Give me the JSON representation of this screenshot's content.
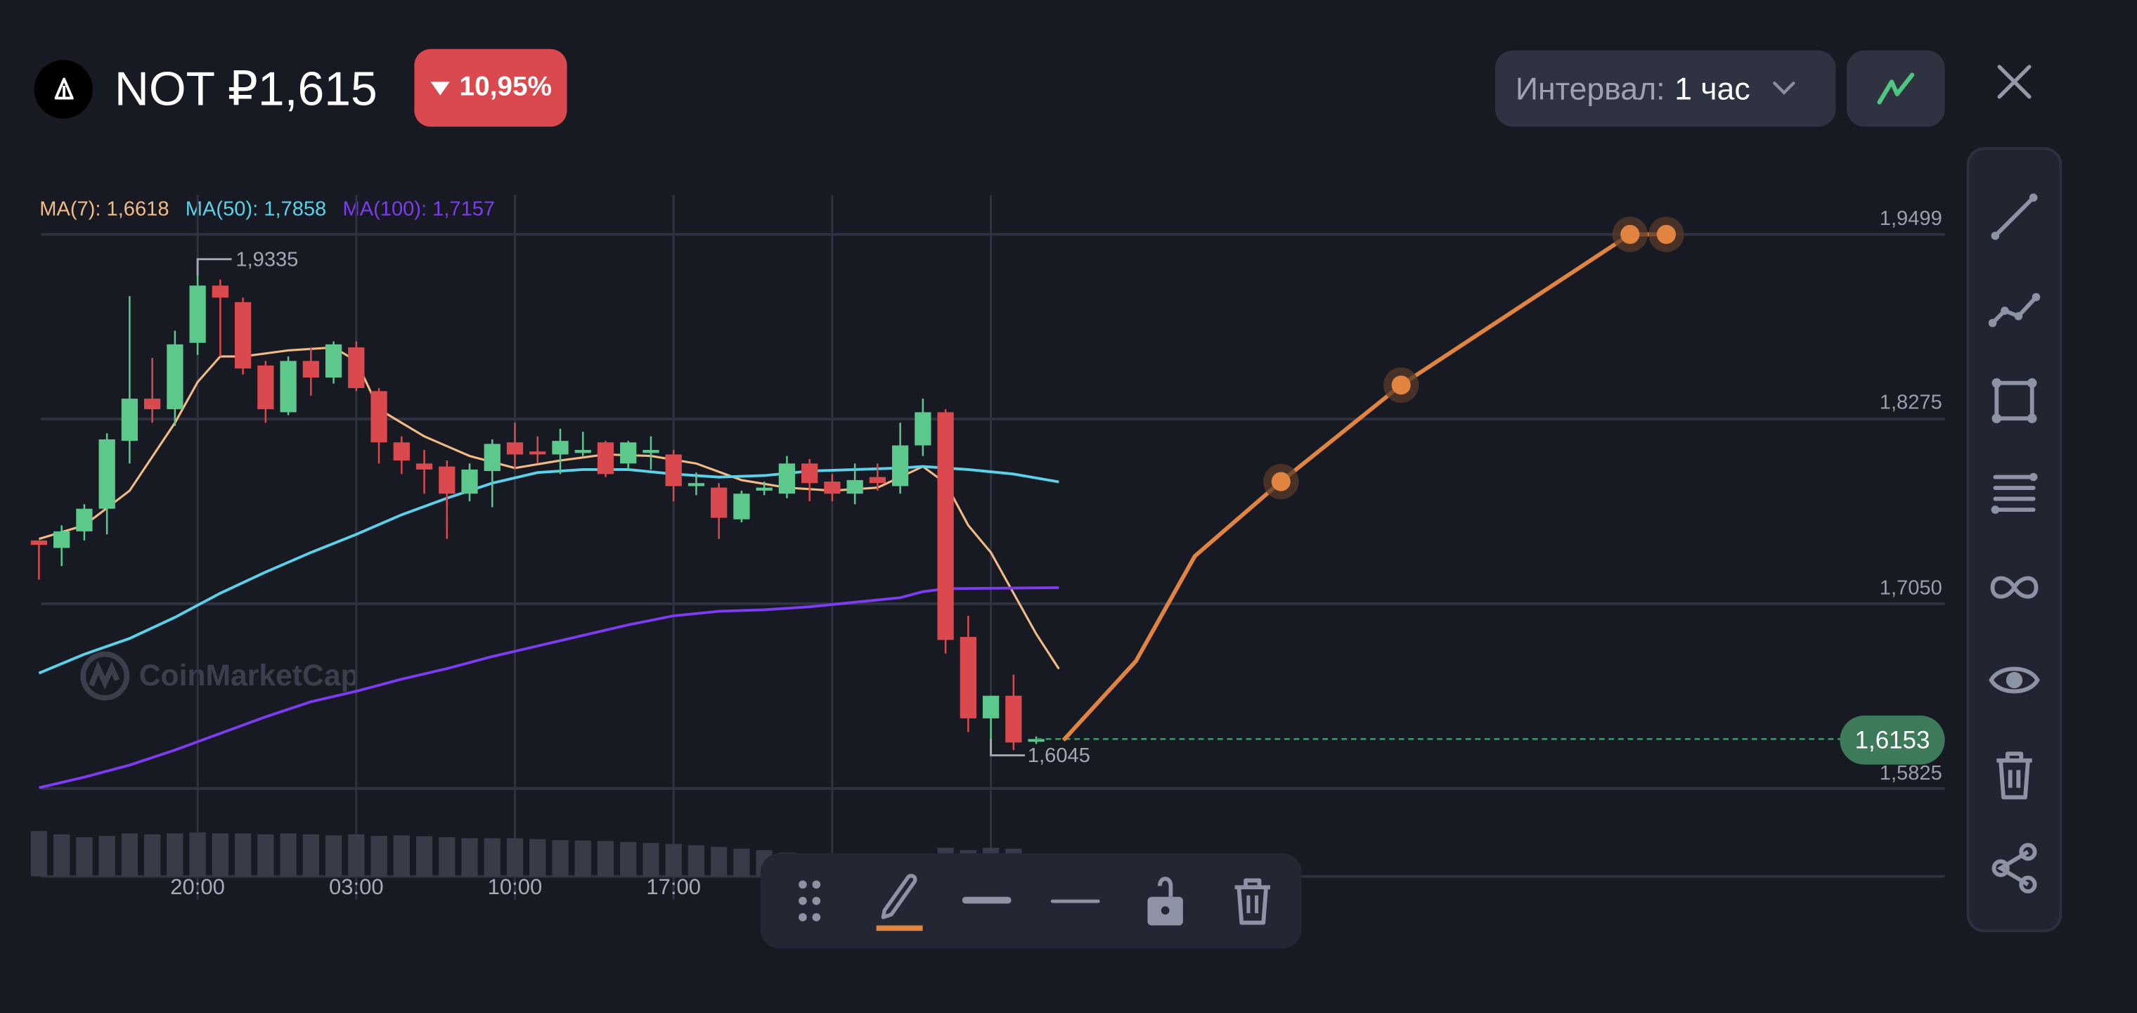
{
  "header": {
    "symbol": "NOT",
    "price": "₽1,615",
    "change": "10,95%",
    "change_direction": "down",
    "interval_label": "Интервал:",
    "interval_value": "1 час"
  },
  "colors": {
    "up": "#5cc88c",
    "down": "#d9494d",
    "ma7": "#f2bb86",
    "ma50": "#5bd2ea",
    "ma100": "#7d3cf0",
    "drawing": "#e0843f",
    "current_price": "#3d7a5a"
  },
  "legend": {
    "ma7": "MA(7): 1,6618",
    "ma50": "MA(50): 1,7858",
    "ma100": "MA(100): 1,7157"
  },
  "watermark": "CoinMarketCap",
  "chart_data": {
    "type": "candlestick",
    "y_ticks": [
      "1,9499",
      "1,8275",
      "1,7050",
      "1,5825"
    ],
    "y_tick_values": [
      1.9499,
      1.8275,
      1.705,
      1.5825
    ],
    "x_ticks": [
      {
        "bar": 7,
        "label": "20:00"
      },
      {
        "bar": 14,
        "label": "03:00"
      },
      {
        "bar": 21,
        "label": "10:00"
      },
      {
        "bar": 28,
        "label": "17:00"
      }
    ],
    "grid": true,
    "high_label": {
      "bar": 7,
      "value": 1.9335,
      "text": "1,9335"
    },
    "low_label": {
      "bar": 42,
      "value": 1.6045,
      "text": "1,6045"
    },
    "current_price": {
      "value": 1.6153,
      "text": "1,6153"
    },
    "candles": [
      [
        1.747,
        1.747,
        1.721,
        1.744
      ],
      [
        1.742,
        1.757,
        1.73,
        1.753
      ],
      [
        1.753,
        1.771,
        1.747,
        1.768
      ],
      [
        1.768,
        1.818,
        1.751,
        1.814
      ],
      [
        1.813,
        1.909,
        1.798,
        1.841
      ],
      [
        1.841,
        1.868,
        1.825,
        1.834
      ],
      [
        1.834,
        1.886,
        1.823,
        1.877
      ],
      [
        1.878,
        1.9335,
        1.87,
        1.916
      ],
      [
        1.916,
        1.92,
        1.869,
        1.908
      ],
      [
        1.905,
        1.908,
        1.857,
        1.861
      ],
      [
        1.863,
        1.866,
        1.825,
        1.834
      ],
      [
        1.832,
        1.869,
        1.83,
        1.866
      ],
      [
        1.866,
        1.875,
        1.843,
        1.855
      ],
      [
        1.855,
        1.879,
        1.851,
        1.877
      ],
      [
        1.875,
        1.879,
        1.846,
        1.848
      ],
      [
        1.846,
        1.848,
        1.798,
        1.812
      ],
      [
        1.812,
        1.816,
        1.791,
        1.8
      ],
      [
        1.798,
        1.807,
        1.778,
        1.794
      ],
      [
        1.796,
        1.8,
        1.748,
        1.778
      ],
      [
        1.778,
        1.798,
        1.773,
        1.794
      ],
      [
        1.793,
        1.814,
        1.769,
        1.811
      ],
      [
        1.812,
        1.825,
        1.794,
        1.804
      ],
      [
        1.806,
        1.816,
        1.798,
        1.804
      ],
      [
        1.804,
        1.821,
        1.791,
        1.813
      ],
      [
        1.805,
        1.819,
        1.803,
        1.807
      ],
      [
        1.812,
        1.813,
        1.789,
        1.791
      ],
      [
        1.798,
        1.813,
        1.794,
        1.812
      ],
      [
        1.805,
        1.816,
        1.794,
        1.807
      ],
      [
        1.804,
        1.807,
        1.773,
        1.783
      ],
      [
        1.783,
        1.792,
        1.777,
        1.785
      ],
      [
        1.782,
        1.785,
        1.748,
        1.762
      ],
      [
        1.761,
        1.78,
        1.759,
        1.778
      ],
      [
        1.78,
        1.786,
        1.777,
        1.782
      ],
      [
        1.778,
        1.803,
        1.775,
        1.798
      ],
      [
        1.798,
        1.801,
        1.773,
        1.785
      ],
      [
        1.786,
        1.791,
        1.773,
        1.778
      ],
      [
        1.778,
        1.798,
        1.771,
        1.787
      ],
      [
        1.789,
        1.798,
        1.78,
        1.785
      ],
      [
        1.783,
        1.825,
        1.778,
        1.81
      ],
      [
        1.81,
        1.841,
        1.803,
        1.832
      ],
      [
        1.832,
        1.834,
        1.672,
        1.681
      ],
      [
        1.683,
        1.697,
        1.62,
        1.629
      ],
      [
        1.629,
        1.644,
        1.6045,
        1.644
      ],
      [
        1.644,
        1.658,
        1.608,
        1.613
      ],
      [
        1.615,
        1.617,
        1.612,
        1.6153
      ]
    ],
    "volume_relative": [
      0.95,
      0.88,
      0.82,
      0.85,
      0.9,
      0.88,
      0.9,
      0.92,
      0.9,
      0.9,
      0.88,
      0.9,
      0.88,
      0.86,
      0.88,
      0.85,
      0.86,
      0.84,
      0.82,
      0.8,
      0.8,
      0.8,
      0.78,
      0.76,
      0.75,
      0.74,
      0.72,
      0.7,
      0.68,
      0.65,
      0.62,
      0.58,
      0.55,
      0.5,
      0.45,
      0.4,
      0.35,
      0.3,
      0.28,
      0.32,
      0.6,
      0.55,
      0.6,
      0.58,
      0.2
    ],
    "series": [
      {
        "name": "MA(7)",
        "points": [
          [
            0,
            1.748
          ],
          [
            2,
            1.757
          ],
          [
            4,
            1.78
          ],
          [
            6,
            1.825
          ],
          [
            7,
            1.852
          ],
          [
            8,
            1.869
          ],
          [
            9,
            1.869
          ],
          [
            11,
            1.873
          ],
          [
            13,
            1.875
          ],
          [
            14,
            1.866
          ],
          [
            15,
            1.834
          ],
          [
            17,
            1.816
          ],
          [
            19,
            1.803
          ],
          [
            21,
            1.795
          ],
          [
            23,
            1.8
          ],
          [
            25,
            1.804
          ],
          [
            27,
            1.803
          ],
          [
            29,
            1.798
          ],
          [
            31,
            1.787
          ],
          [
            33,
            1.782
          ],
          [
            35,
            1.78
          ],
          [
            37,
            1.782
          ],
          [
            39,
            1.796
          ],
          [
            40,
            1.785
          ],
          [
            41,
            1.757
          ],
          [
            42,
            1.739
          ],
          [
            43,
            1.712
          ],
          [
            44,
            1.685
          ],
          [
            45,
            1.6618
          ]
        ]
      },
      {
        "name": "MA(50)",
        "points": [
          [
            0,
            1.659
          ],
          [
            2,
            1.6715
          ],
          [
            4,
            1.682
          ],
          [
            6,
            1.696
          ],
          [
            8,
            1.712
          ],
          [
            10,
            1.726
          ],
          [
            12,
            1.739
          ],
          [
            14,
            1.751
          ],
          [
            16,
            1.764
          ],
          [
            18,
            1.775
          ],
          [
            20,
            1.785
          ],
          [
            22,
            1.792
          ],
          [
            24,
            1.794
          ],
          [
            26,
            1.794
          ],
          [
            28,
            1.791
          ],
          [
            30,
            1.789
          ],
          [
            32,
            1.79
          ],
          [
            34,
            1.793
          ],
          [
            36,
            1.794
          ],
          [
            38,
            1.795
          ],
          [
            39,
            1.796
          ],
          [
            41,
            1.794
          ],
          [
            43,
            1.791
          ],
          [
            45,
            1.7858
          ]
        ]
      },
      {
        "name": "MA(100)",
        "points": [
          [
            0,
            1.583
          ],
          [
            2,
            1.59
          ],
          [
            4,
            1.598
          ],
          [
            6,
            1.608
          ],
          [
            8,
            1.619
          ],
          [
            10,
            1.63
          ],
          [
            12,
            1.64
          ],
          [
            14,
            1.647
          ],
          [
            16,
            1.655
          ],
          [
            18,
            1.662
          ],
          [
            20,
            1.67
          ],
          [
            22,
            1.677
          ],
          [
            24,
            1.684
          ],
          [
            26,
            1.691
          ],
          [
            28,
            1.697
          ],
          [
            30,
            1.7
          ],
          [
            32,
            1.701
          ],
          [
            34,
            1.703
          ],
          [
            36,
            1.706
          ],
          [
            38,
            1.709
          ],
          [
            39,
            1.713
          ],
          [
            40,
            1.715
          ],
          [
            45,
            1.7157
          ]
        ]
      }
    ],
    "drawing": {
      "points": [
        [
          45.2,
          1.6145
        ],
        [
          48.4,
          1.667
        ],
        [
          51,
          1.7366
        ],
        [
          54.8,
          1.786
        ],
        [
          60.1,
          1.85
        ],
        [
          70.2,
          1.9499
        ],
        [
          71.8,
          1.9499
        ]
      ],
      "anchors": [
        3,
        4,
        5,
        6
      ]
    }
  },
  "right_toolbar": [
    "trend-line",
    "polyline",
    "rectangle",
    "fib-levels",
    "infinity",
    "eye",
    "trash",
    "share"
  ],
  "bottom_toolbar": {
    "active_tool": "pencil"
  }
}
